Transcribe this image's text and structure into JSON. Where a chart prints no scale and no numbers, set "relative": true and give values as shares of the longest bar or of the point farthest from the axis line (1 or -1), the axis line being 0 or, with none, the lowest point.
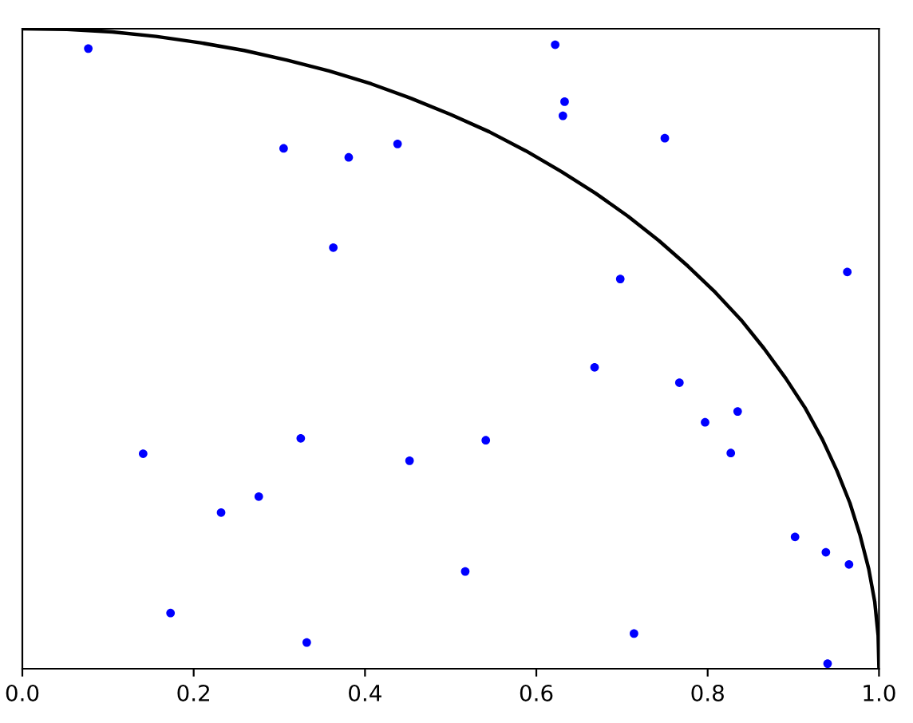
{
  "chart_data": {
    "type": "scatter",
    "relative": true,
    "tick_labels": "x",
    "xlim": [
      0,
      1
    ],
    "xticks": [
      {
        "value": 0,
        "label": "0.0"
      },
      0.2,
      0.4,
      0.6,
      0.8,
      {
        "value": 1,
        "label": "1.0"
      }
    ],
    "series": [
      {
        "color": "#0000ff",
        "marker": "circle",
        "x": [
          0.077,
          0.305,
          0.622,
          0.633,
          0.631,
          0.438,
          0.381,
          0.363,
          0.668,
          0.75,
          0.698,
          0.963,
          0.767,
          0.835,
          0.797,
          0.827,
          0.902,
          0.938,
          0.965,
          0.714,
          0.94,
          0.141,
          0.325,
          0.276,
          0.232,
          0.173,
          0.332,
          0.452,
          0.541,
          0.517
        ],
        "values": [
          0.969,
          0.813,
          0.975,
          0.886,
          0.864,
          0.82,
          0.799,
          0.658,
          0.471,
          0.829,
          0.609,
          0.62,
          0.447,
          0.402,
          0.385,
          0.337,
          0.206,
          0.182,
          0.163,
          0.055,
          0.008,
          0.336,
          0.36,
          0.269,
          0.244,
          0.087,
          0.041,
          0.325,
          0.357,
          0.152
        ]
      },
      {
        "type": "line",
        "color": "#000000",
        "line_style": "solid",
        "x": [
          0.0,
          0.052,
          0.105,
          0.156,
          0.208,
          0.259,
          0.309,
          0.358,
          0.407,
          0.454,
          0.5,
          0.545,
          0.588,
          0.629,
          0.669,
          0.707,
          0.743,
          0.777,
          0.809,
          0.839,
          0.866,
          0.891,
          0.914,
          0.934,
          0.951,
          0.966,
          0.978,
          0.988,
          0.995,
          0.999,
          1.0
        ],
        "values": [
          1.0,
          0.999,
          0.995,
          0.988,
          0.978,
          0.966,
          0.951,
          0.934,
          0.914,
          0.891,
          0.866,
          0.839,
          0.809,
          0.777,
          0.743,
          0.707,
          0.669,
          0.629,
          0.588,
          0.545,
          0.5,
          0.454,
          0.407,
          0.358,
          0.309,
          0.259,
          0.208,
          0.156,
          0.105,
          0.052,
          0.0
        ]
      }
    ]
  }
}
